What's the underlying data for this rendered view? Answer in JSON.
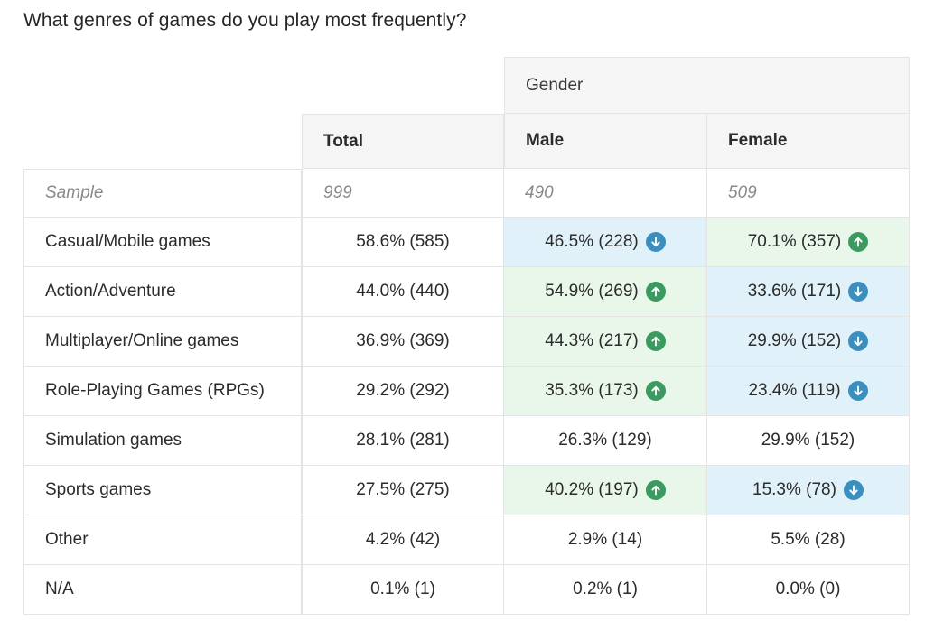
{
  "question": "What genres of games do you play most frequently?",
  "header": {
    "group_label": "Gender",
    "columns": [
      "Total",
      "Male",
      "Female"
    ]
  },
  "sample": {
    "label": "Sample",
    "values": [
      "999",
      "490",
      "509"
    ]
  },
  "colors": {
    "up_bg": "#e8f7ea",
    "down_bg": "#e1f1f9",
    "up_icon": "#3b9a5f",
    "down_icon": "#3a8fbf"
  },
  "rows": [
    {
      "label": "Casual/Mobile games",
      "total": "58.6% (585)",
      "male": "46.5% (228)",
      "male_sig": "down",
      "female": "70.1% (357)",
      "female_sig": "up"
    },
    {
      "label": "Action/Adventure",
      "total": "44.0% (440)",
      "male": "54.9% (269)",
      "male_sig": "up",
      "female": "33.6% (171)",
      "female_sig": "down"
    },
    {
      "label": "Multiplayer/Online games",
      "total": "36.9% (369)",
      "male": "44.3% (217)",
      "male_sig": "up",
      "female": "29.9% (152)",
      "female_sig": "down"
    },
    {
      "label": "Role-Playing Games (RPGs)",
      "total": "29.2% (292)",
      "male": "35.3% (173)",
      "male_sig": "up",
      "female": "23.4% (119)",
      "female_sig": "down"
    },
    {
      "label": "Simulation games",
      "total": "28.1% (281)",
      "male": "26.3% (129)",
      "male_sig": "none",
      "female": "29.9% (152)",
      "female_sig": "none"
    },
    {
      "label": "Sports games",
      "total": "27.5% (275)",
      "male": "40.2% (197)",
      "male_sig": "up",
      "female": "15.3% (78)",
      "female_sig": "down"
    },
    {
      "label": "Other",
      "total": "4.2% (42)",
      "male": "2.9% (14)",
      "male_sig": "none",
      "female": "5.5% (28)",
      "female_sig": "none"
    },
    {
      "label": "N/A",
      "total": "0.1% (1)",
      "male": "0.2% (1)",
      "male_sig": "none",
      "female": "0.0% (0)",
      "female_sig": "none"
    }
  ]
}
